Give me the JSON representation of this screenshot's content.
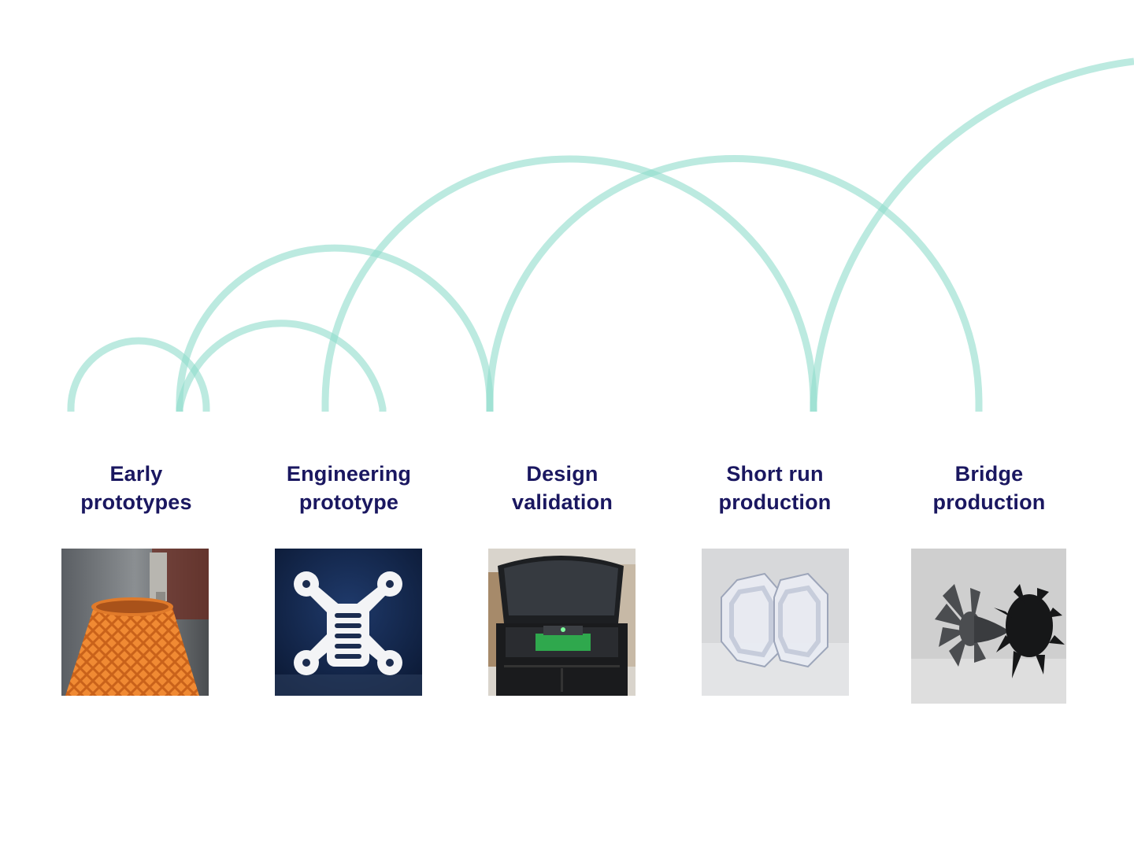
{
  "colors": {
    "arc": "#8fdccb",
    "label": "#1a1760",
    "background": "#ffffff"
  },
  "stages": [
    {
      "line1": "Early",
      "line2": "prototypes",
      "image": "orange-lattice-vase-print"
    },
    {
      "line1": "Engineering",
      "line2": "prototype",
      "image": "white-drone-frame-part"
    },
    {
      "line1": "Design",
      "line2": "validation",
      "image": "open-3d-printer-with-green-part"
    },
    {
      "line1": "Short run",
      "line2": "production",
      "image": "clear-octagonal-resin-parts"
    },
    {
      "line1": "Bridge",
      "line2": "production",
      "image": "black-turbine-impeller-parts"
    }
  ]
}
